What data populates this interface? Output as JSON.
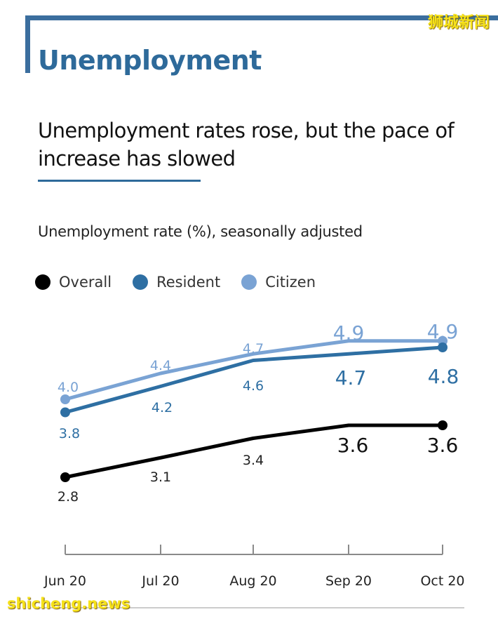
{
  "watermark_top": "狮城新闻",
  "watermark_bottom": "shicheng.news",
  "section_title": "Unemployment",
  "headline": "Unemployment rates rose, but the pace of increase has slowed",
  "colors": {
    "accent": "#2e6a9a",
    "overall": "#000000",
    "resident": "#2e6fa3",
    "citizen": "#7aa3d4"
  },
  "chart_data": {
    "type": "line",
    "title": "Unemployment rate (%), seasonally adjusted",
    "categories": [
      "Jun 20",
      "Jul 20",
      "Aug 20",
      "Sep 20",
      "Oct 20"
    ],
    "series": [
      {
        "name": "Overall",
        "color": "#000000",
        "values": [
          2.8,
          3.1,
          3.4,
          3.6,
          3.6
        ],
        "labels": [
          "2.8",
          "3.1",
          "3.4",
          "3.6",
          "3.6"
        ]
      },
      {
        "name": "Resident",
        "color": "#2e6fa3",
        "values": [
          3.8,
          4.2,
          4.6,
          4.7,
          4.8
        ],
        "labels": [
          "3.8",
          "4.2",
          "4.6",
          "4.7",
          "4.8"
        ]
      },
      {
        "name": "Citizen",
        "color": "#7aa3d4",
        "values": [
          4.0,
          4.4,
          4.7,
          4.9,
          4.9
        ],
        "labels": [
          "4.0",
          "4.4",
          "4.7",
          "4.9",
          "4.9"
        ]
      }
    ],
    "legend_position": "top-left",
    "grid": false
  }
}
